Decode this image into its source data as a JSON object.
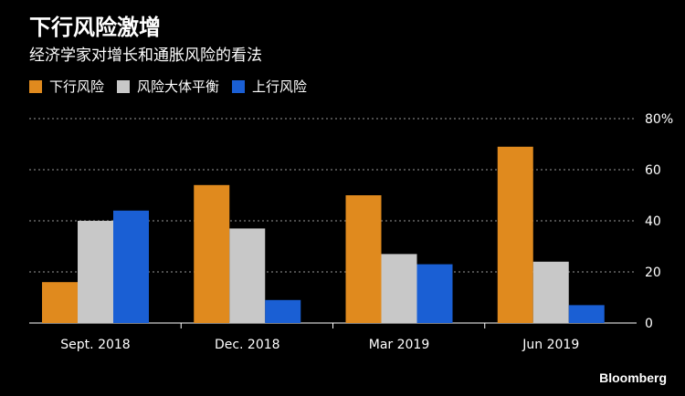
{
  "header": {
    "title": "下行风险激增",
    "subtitle": "经济学家对增长和通胀风险的看法"
  },
  "brand": "Bloomberg",
  "chart_data": {
    "type": "bar",
    "title": "下行风险激增",
    "subtitle": "经济学家对增长和通胀风险的看法",
    "categories": [
      "Sept. 2018",
      "Dec. 2018",
      "Mar 2019",
      "Jun 2019"
    ],
    "series": [
      {
        "name": "下行风险",
        "color": "#E08A1E",
        "values": [
          16,
          54,
          50,
          69
        ]
      },
      {
        "name": "风险大体平衡",
        "color": "#C8C8C8",
        "values": [
          40,
          37,
          27,
          24
        ]
      },
      {
        "name": "上行风险",
        "color": "#1A5FD4",
        "values": [
          44,
          9,
          23,
          7
        ]
      }
    ],
    "ylim": [
      0,
      80
    ],
    "yticks": [
      0,
      20,
      40,
      60,
      80
    ],
    "ytick_labels": [
      "0",
      "20",
      "40",
      "60",
      "80%"
    ],
    "xlabel": "",
    "ylabel": "",
    "grid": true,
    "legend_position": "top-left"
  }
}
